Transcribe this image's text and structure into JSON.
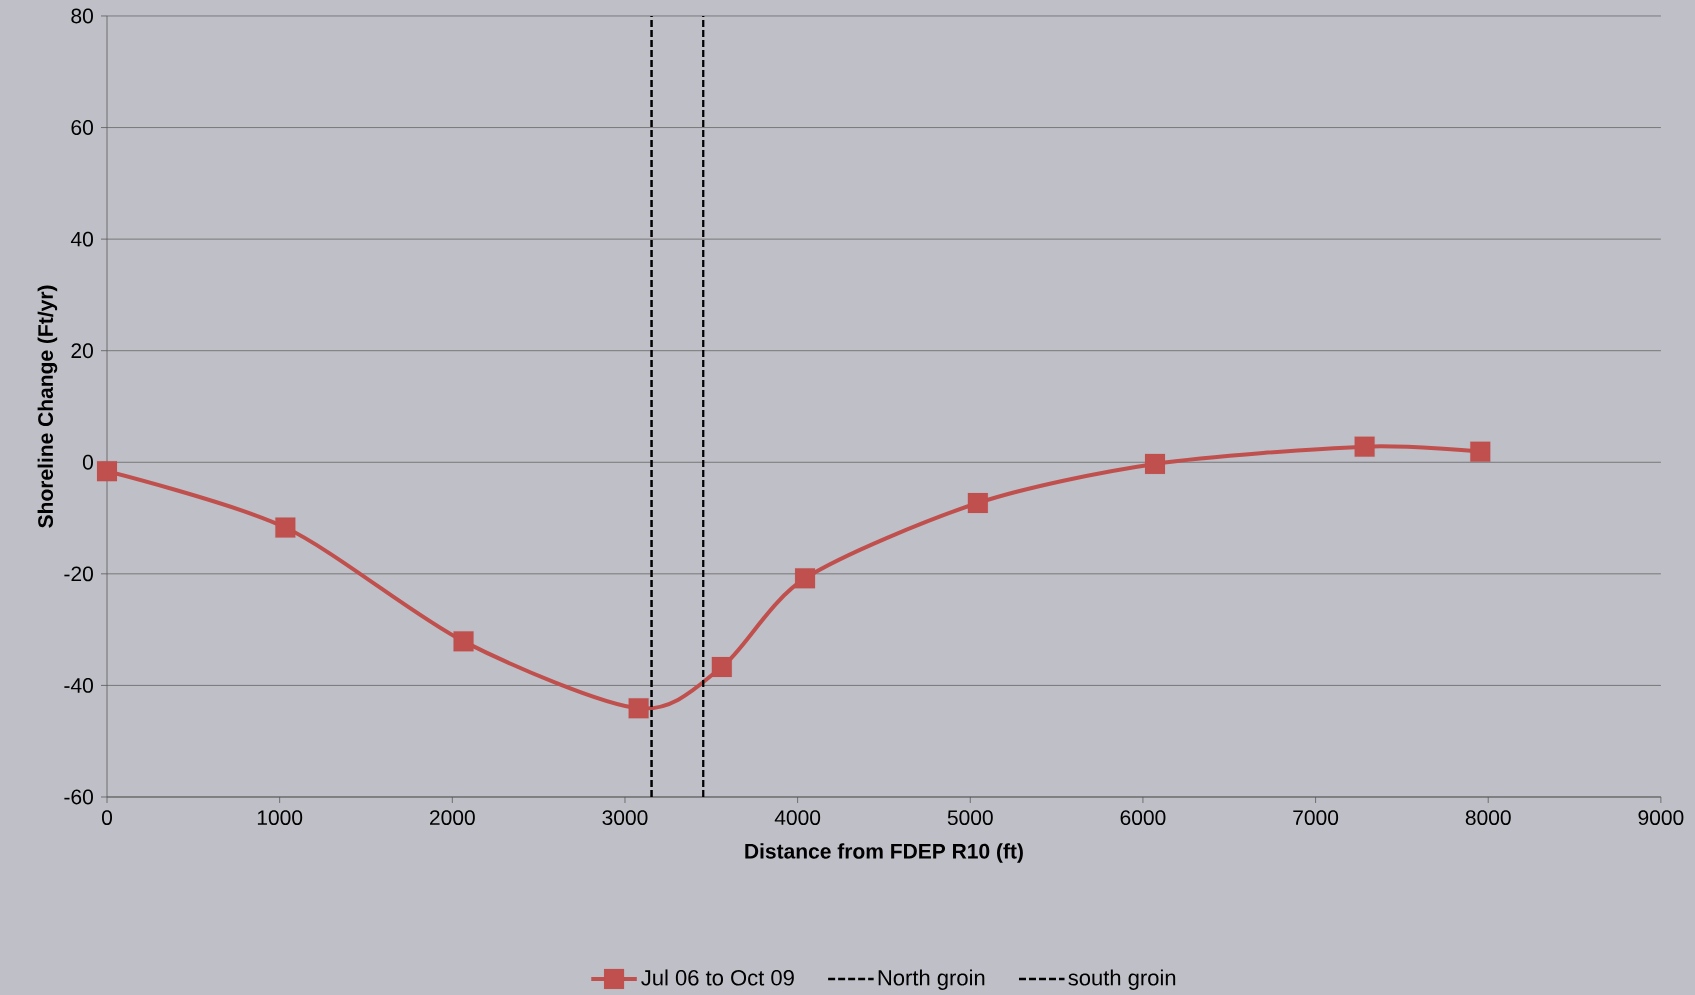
{
  "chart_data": {
    "type": "line",
    "xlabel": "Distance from FDEP R10 (ft)",
    "ylabel": "Shoreline Change (Ft/yr)",
    "x": [
      0,
      1033,
      2065,
      3079,
      3561,
      4043,
      5044,
      6070,
      7284,
      7954
    ],
    "series": [
      {
        "name": "Jul 06 to Oct 09",
        "color": "#c0504d",
        "values": [
          -1.6,
          -11.7,
          -32.1,
          -44.1,
          -36.7,
          -20.8,
          -7.3,
          -0.3,
          2.8,
          1.9
        ]
      }
    ],
    "ref_lines": [
      {
        "axis": "x",
        "value": 3154,
        "label": "North groin",
        "color": "#000000",
        "line_style": "dashed"
      },
      {
        "axis": "x",
        "value": 3454,
        "label": "south groin",
        "color": "#000000",
        "line_style": "dashed"
      }
    ],
    "xlim": [
      0,
      9000
    ],
    "ylim": [
      -60,
      80
    ],
    "xticks": [
      0,
      1000,
      2000,
      3000,
      4000,
      5000,
      6000,
      7000,
      8000,
      9000
    ],
    "yticks": [
      -60,
      -40,
      -20,
      0,
      20,
      40,
      60,
      80
    ],
    "grid": "y",
    "legend": "bottom",
    "marker": "square",
    "line_style": "solid"
  }
}
